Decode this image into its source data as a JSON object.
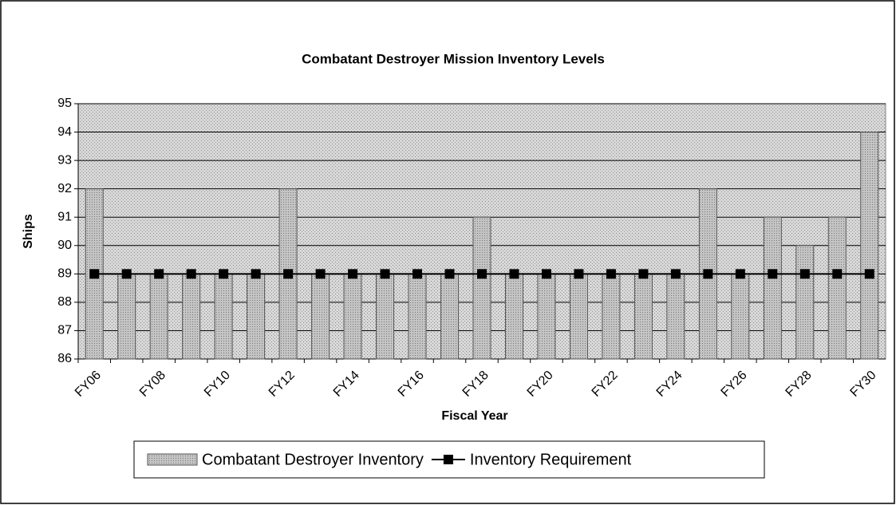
{
  "chart_data": {
    "type": "bar",
    "title": "Combatant Destroyer Mission Inventory Levels",
    "x_label": "Fiscal Year",
    "y_label": "Ships",
    "categories": [
      "FY06",
      null,
      "FY08",
      null,
      "FY10",
      null,
      "FY12",
      null,
      "FY14",
      null,
      "FY16",
      null,
      "FY18",
      null,
      "FY20",
      null,
      "FY22",
      null,
      "FY24",
      null,
      "FY26",
      null,
      "FY28",
      null,
      "FY30"
    ],
    "series": [
      {
        "name": "Combatant Destroyer Inventory",
        "type": "bar",
        "color": "#c4c4c4",
        "values": [
          92,
          89,
          89,
          89,
          89,
          89,
          92,
          89,
          89,
          89,
          89,
          89,
          91,
          89,
          89,
          89,
          89,
          89,
          89,
          92,
          89,
          91,
          90,
          91,
          94
        ]
      },
      {
        "name": "Inventory Requirement",
        "type": "line",
        "color": "#000000",
        "values": [
          89,
          89,
          89,
          89,
          89,
          89,
          89,
          89,
          89,
          89,
          89,
          89,
          89,
          89,
          89,
          89,
          89,
          89,
          89,
          89,
          89,
          89,
          89,
          89,
          89
        ]
      }
    ],
    "ylim": [
      86,
      95
    ],
    "yticks": [
      86,
      87,
      88,
      89,
      90,
      91,
      92,
      93,
      94,
      95
    ],
    "grid": true,
    "legend": "bottom"
  }
}
